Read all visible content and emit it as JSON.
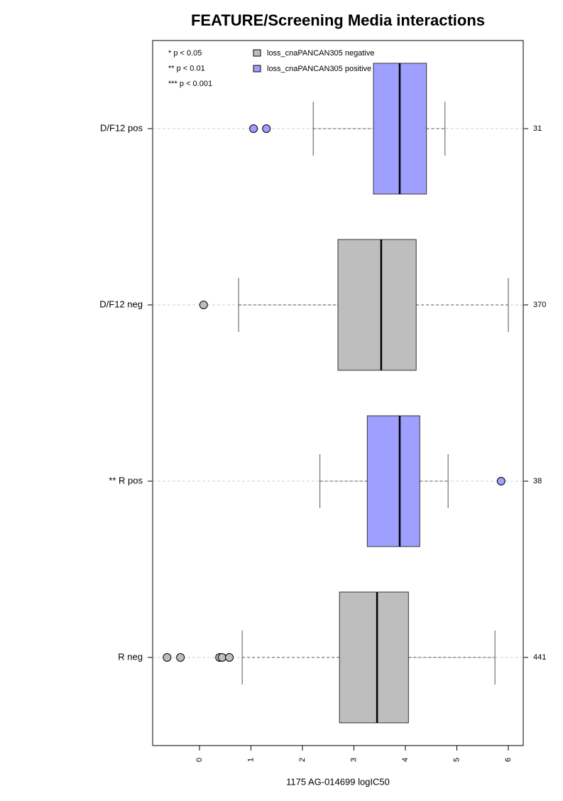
{
  "chart_data": {
    "type": "box",
    "title": "FEATURE/Screening Media interactions",
    "x_label": "1175 AG-014699 logIC50",
    "notes": [
      "* p < 0.05",
      "** p < 0.01",
      "*** p < 0.001"
    ],
    "legend": [
      {
        "name": "loss_cnaPANCAN305 negative",
        "color": "#bebebe"
      },
      {
        "name": "loss_cnaPANCAN305 positive",
        "color": "#9f9fff"
      }
    ],
    "categories": [
      "D/F12 pos",
      "D/F12 neg",
      "** R pos",
      "R neg"
    ],
    "counts": [
      31,
      370,
      38,
      441
    ],
    "boxes": [
      {
        "whisker_low": 2.21,
        "q1": 3.38,
        "median": 3.89,
        "q3": 4.41,
        "whisker_high": 4.77,
        "outliers": [
          1.05,
          1.3
        ],
        "color": "#9f9fff"
      },
      {
        "whisker_low": 0.76,
        "q1": 2.69,
        "median": 3.53,
        "q3": 4.21,
        "whisker_high": 6.0,
        "outliers": [
          0.08
        ],
        "color": "#bebebe"
      },
      {
        "whisker_low": 2.34,
        "q1": 3.26,
        "median": 3.89,
        "q3": 4.28,
        "whisker_high": 4.83,
        "outliers": [
          5.86
        ],
        "color": "#9f9fff"
      },
      {
        "whisker_low": 0.83,
        "q1": 2.72,
        "median": 3.45,
        "q3": 4.06,
        "whisker_high": 5.74,
        "outliers": [
          -0.63,
          -0.37,
          0.39,
          0.44,
          0.58
        ],
        "color": "#bebebe"
      }
    ],
    "xlim": [
      -0.91,
      6.29
    ],
    "xticks": [
      0,
      1,
      2,
      3,
      4,
      5,
      6
    ]
  }
}
